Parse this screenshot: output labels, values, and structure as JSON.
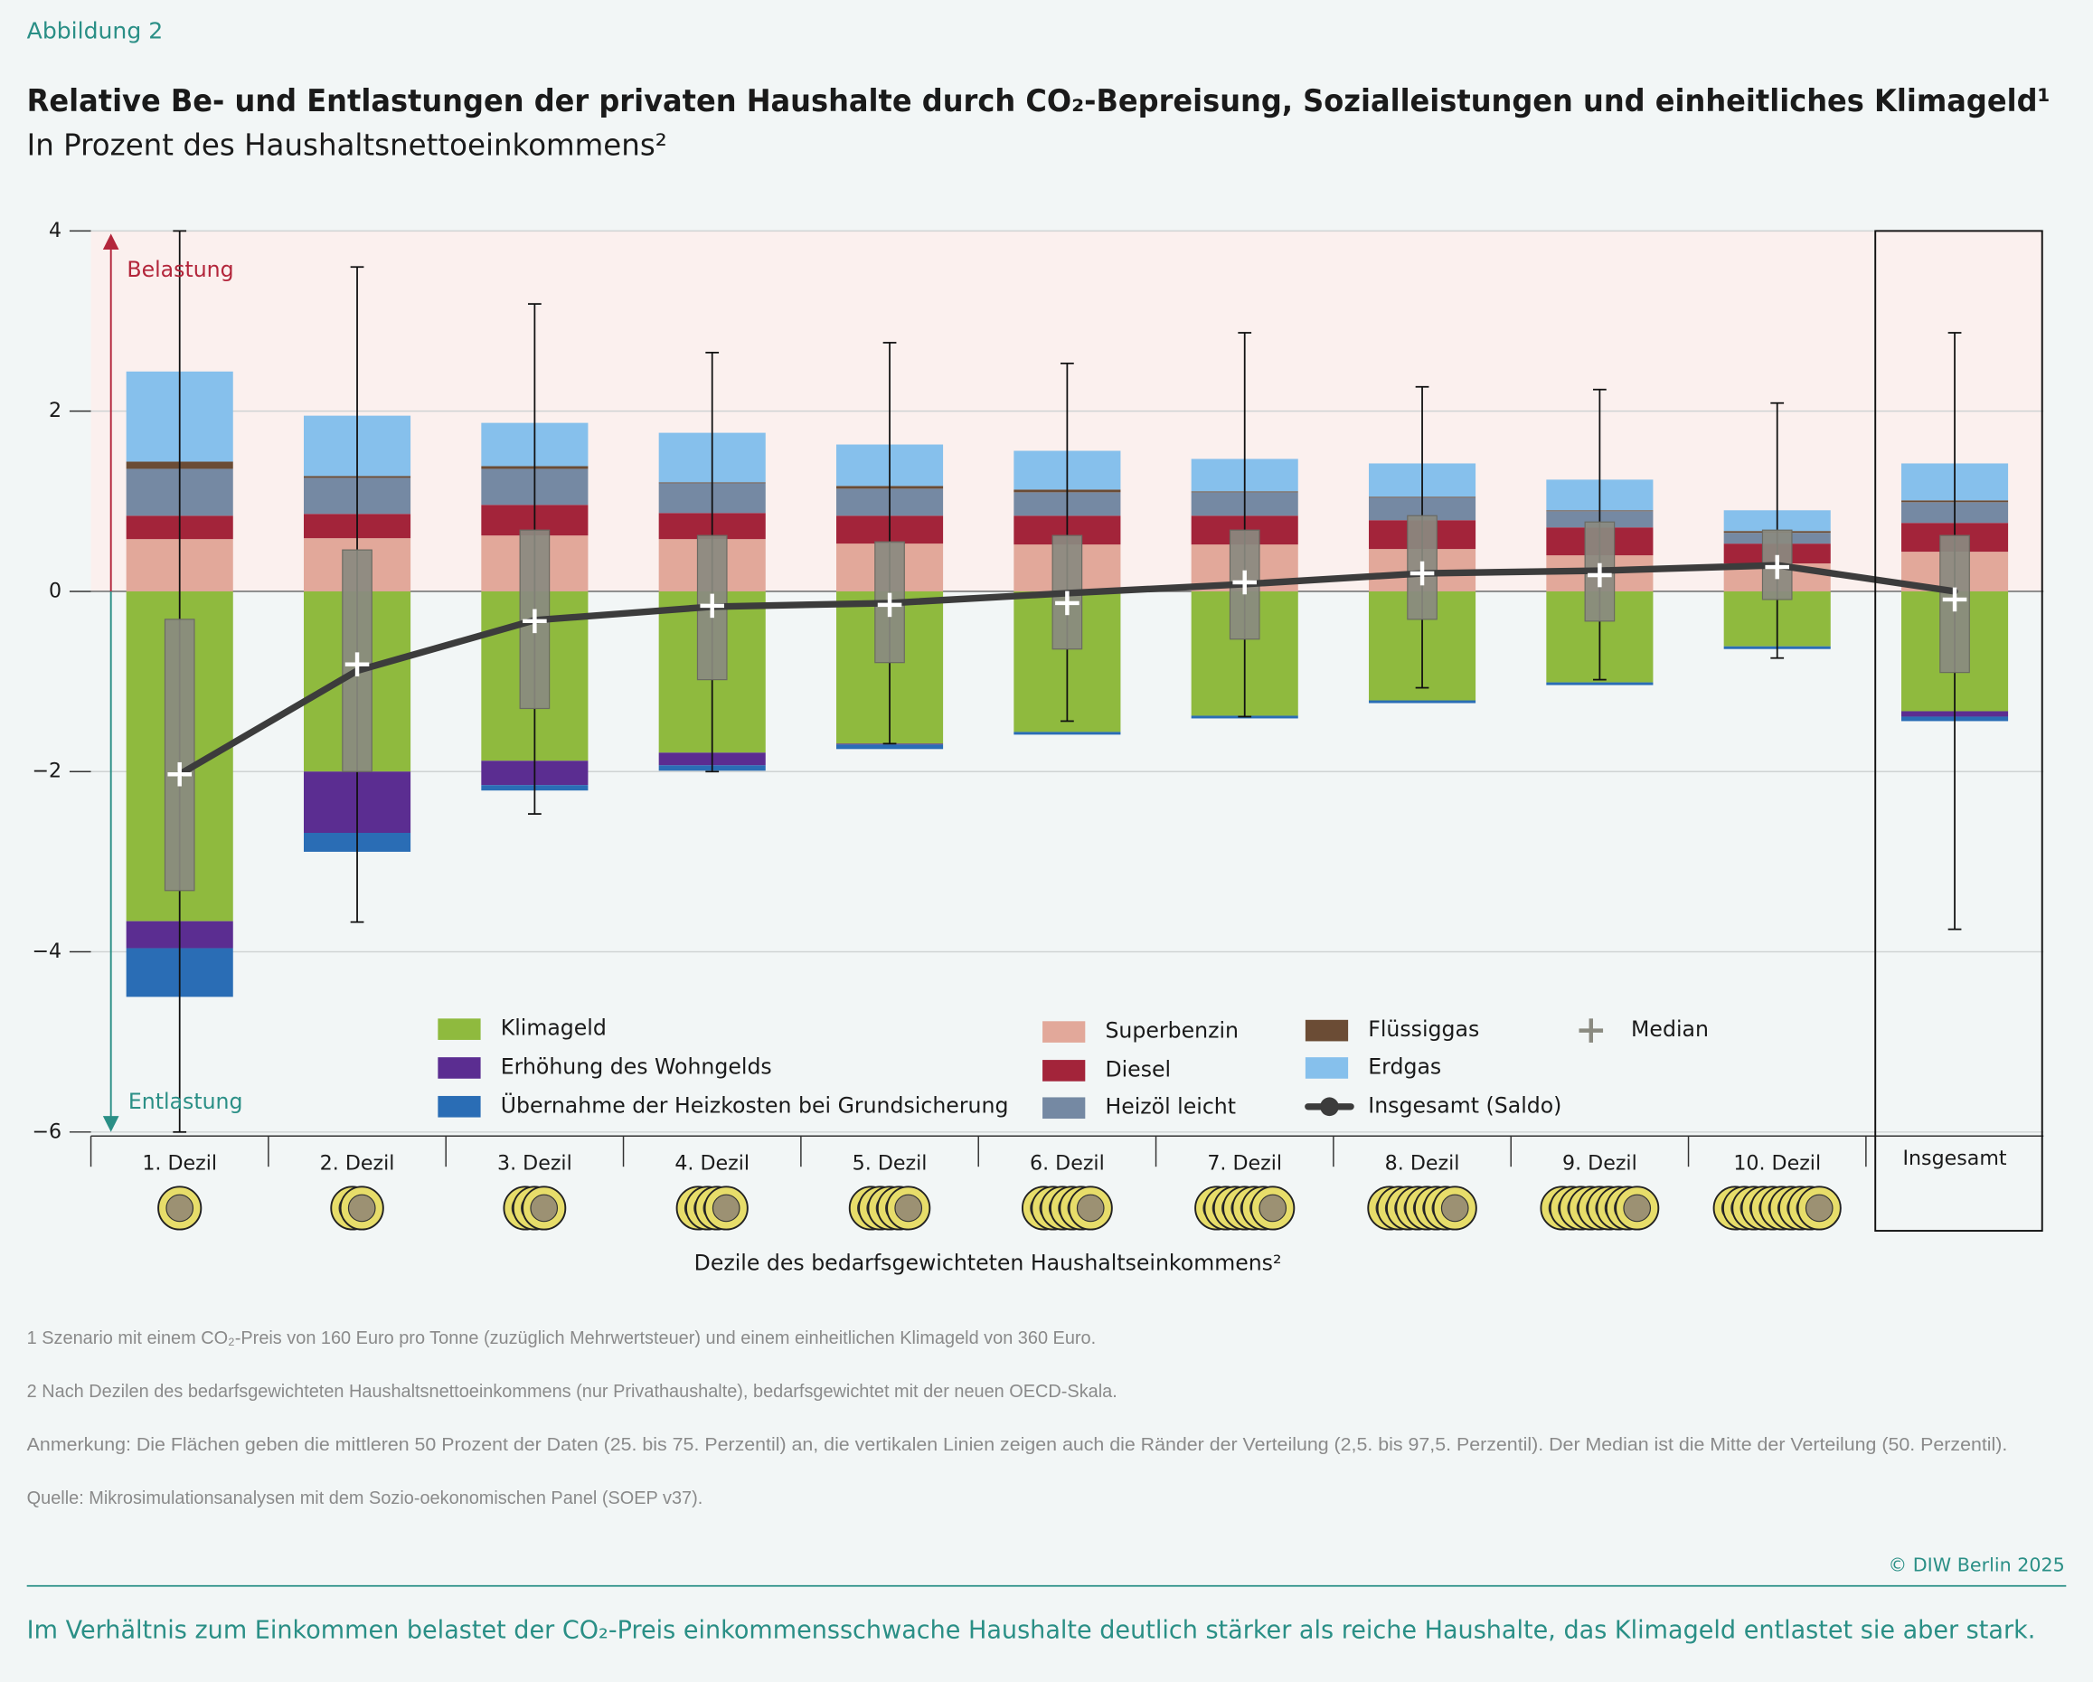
{
  "figure_label": "Abbildung 2",
  "chart_data": {
    "type": "bar",
    "stacked": true,
    "title": "Relative Be- und Entlastungen der privaten Haushalte durch CO₂-Bepreisung, Sozialleistungen und einheitliches Klimageld¹",
    "subtitle": "In Prozent des Haushaltsnettoeinkommens²",
    "x_label": "Dezile des bedarfsgewichteten Haushaltseinkommens²",
    "upper_label": "Belastung",
    "lower_label": "Entlastung",
    "categories": [
      "1. Dezil",
      "2. Dezil",
      "3. Dezil",
      "4. Dezil",
      "5. Dezil",
      "6. Dezil",
      "7. Dezil",
      "8. Dezil",
      "9. Dezil",
      "10. Dezil",
      "Insgesamt"
    ],
    "ylim": [
      -6,
      4
    ],
    "yticks": [
      {
        "value": -6,
        "label": "−6"
      },
      {
        "value": -4,
        "label": "−4"
      },
      {
        "value": -2,
        "label": "−2"
      },
      0,
      2,
      4
    ],
    "grid": true,
    "series": [
      {
        "name": "Klimageld",
        "color": "#8fba3e",
        "values": [
          -3.66,
          -2.0,
          -1.88,
          -1.79,
          -1.69,
          -1.56,
          -1.38,
          -1.21,
          -1.01,
          -0.61,
          -1.33
        ]
      },
      {
        "name": "Erhöhung des Wohngelds",
        "color": "#5b2d91",
        "values": [
          -0.3,
          -0.68,
          -0.27,
          -0.14,
          -0.01,
          0,
          0,
          0,
          0,
          0,
          -0.06
        ]
      },
      {
        "name": "Übernahme der Heizkosten bei Grundsicherung",
        "color": "#2a6db5",
        "values": [
          -0.54,
          -0.21,
          -0.06,
          -0.06,
          -0.05,
          -0.03,
          -0.03,
          -0.03,
          -0.03,
          -0.03,
          -0.05
        ]
      },
      {
        "name": "Superbenzin",
        "color": "#e2a89a",
        "values": [
          0.58,
          0.59,
          0.62,
          0.58,
          0.53,
          0.52,
          0.52,
          0.47,
          0.4,
          0.31,
          0.44
        ]
      },
      {
        "name": "Diesel",
        "color": "#a3243a",
        "values": [
          0.26,
          0.27,
          0.34,
          0.29,
          0.31,
          0.32,
          0.32,
          0.32,
          0.31,
          0.22,
          0.32
        ]
      },
      {
        "name": "Heizöl leicht",
        "color": "#7589a3",
        "values": [
          0.52,
          0.4,
          0.4,
          0.33,
          0.3,
          0.26,
          0.26,
          0.25,
          0.18,
          0.12,
          0.23
        ]
      },
      {
        "name": "Flüssiggas",
        "color": "#6b4c35",
        "values": [
          0.08,
          0.02,
          0.03,
          0.01,
          0.03,
          0.03,
          0.01,
          0.01,
          0.01,
          0.02,
          0.02
        ]
      },
      {
        "name": "Erdgas",
        "color": "#86c0ec",
        "values": [
          1.0,
          0.67,
          0.48,
          0.55,
          0.46,
          0.43,
          0.36,
          0.37,
          0.34,
          0.23,
          0.41
        ]
      }
    ],
    "saldo": {
      "name": "Insgesamt (Saldo)",
      "type": "line",
      "color": "#3c3c3c",
      "values": [
        -2.03,
        -0.88,
        -0.32,
        -0.17,
        -0.13,
        -0.02,
        0.08,
        0.2,
        0.23,
        0.29,
        0.0
      ]
    },
    "distribution": {
      "name": "Median",
      "color": "#8a8a80",
      "q3": [
        -0.31,
        0.46,
        0.68,
        0.62,
        0.55,
        0.62,
        0.68,
        0.84,
        0.77,
        0.68,
        0.62
      ],
      "q1": [
        -3.32,
        -2.0,
        -1.3,
        -0.98,
        -0.79,
        -0.64,
        -0.53,
        -0.31,
        -0.33,
        -0.09,
        -0.9
      ],
      "whisker_high": [
        4.0,
        3.6,
        3.19,
        2.65,
        2.76,
        2.53,
        2.87,
        2.27,
        2.24,
        2.09,
        2.87
      ],
      "whisker_low": [
        -6.0,
        -3.67,
        -2.47,
        -2.0,
        -1.69,
        -1.44,
        -1.39,
        -1.07,
        -0.98,
        -0.74,
        -3.75
      ],
      "median": [
        -2.03,
        -0.81,
        -0.33,
        -0.16,
        -0.15,
        -0.13,
        0.1,
        0.2,
        0.18,
        0.27,
        -0.09
      ]
    }
  },
  "notes": [
    "1  Szenario mit einem CO₂-Preis von 160 Euro pro Tonne (zuzüglich Mehrwertsteuer) und einem einheitlichen Klimageld von 360 Euro.",
    "2  Nach Dezilen des bedarfsgewichteten Haushaltsnettoeinkommens (nur Privathaushalte), bedarfsgewichtet mit der neuen OECD-Skala.",
    "Anmerkung: Die Flächen geben die mittleren 50 Prozent der Daten (25. bis 75. Perzentil) an, die vertikalen Linien zeigen auch die Ränder der Verteilung (2,5. bis 97,5. Perzentil). Der Median ist die Mitte der Verteilung (50. Perzentil).",
    "Quelle: Mikrosimulationsanalysen mit dem Sozio-oekonomischen Panel (SOEP v37)."
  ],
  "copyright": "© DIW Berlin 2025",
  "caption": "Im Verhältnis zum Einkommen belastet der CO₂-Preis einkommensschwache Haushalte deutlich stärker als reiche Haushalte, das Klimageld entlastet sie aber stark."
}
